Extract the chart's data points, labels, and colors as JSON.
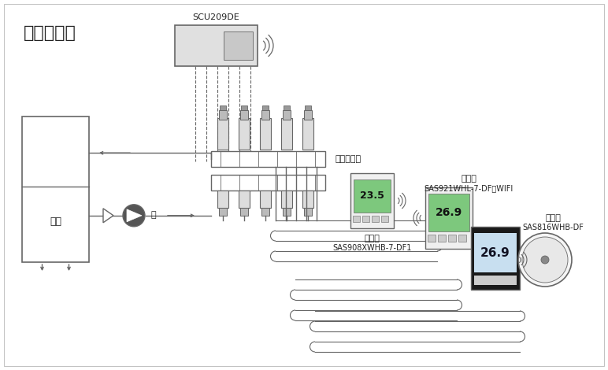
{
  "title": "系统示意图",
  "bg_color": "#ffffff",
  "lc": "#666666",
  "scu_label": "SCU209DE",
  "actuator_label": "电热执行器",
  "boiler_label": "锅炉",
  "pump_label": "泵",
  "t1_label": "温控器",
  "t1_model": "SAS908XWHB-7-DF1",
  "t2_label": "温控器",
  "t2_model": "SAS921WHL-7-DF－WIFI",
  "t3_label": "温控器",
  "t3_model": "SAS816WHB-DF",
  "temp1": "23.5",
  "temp2": "26.9"
}
